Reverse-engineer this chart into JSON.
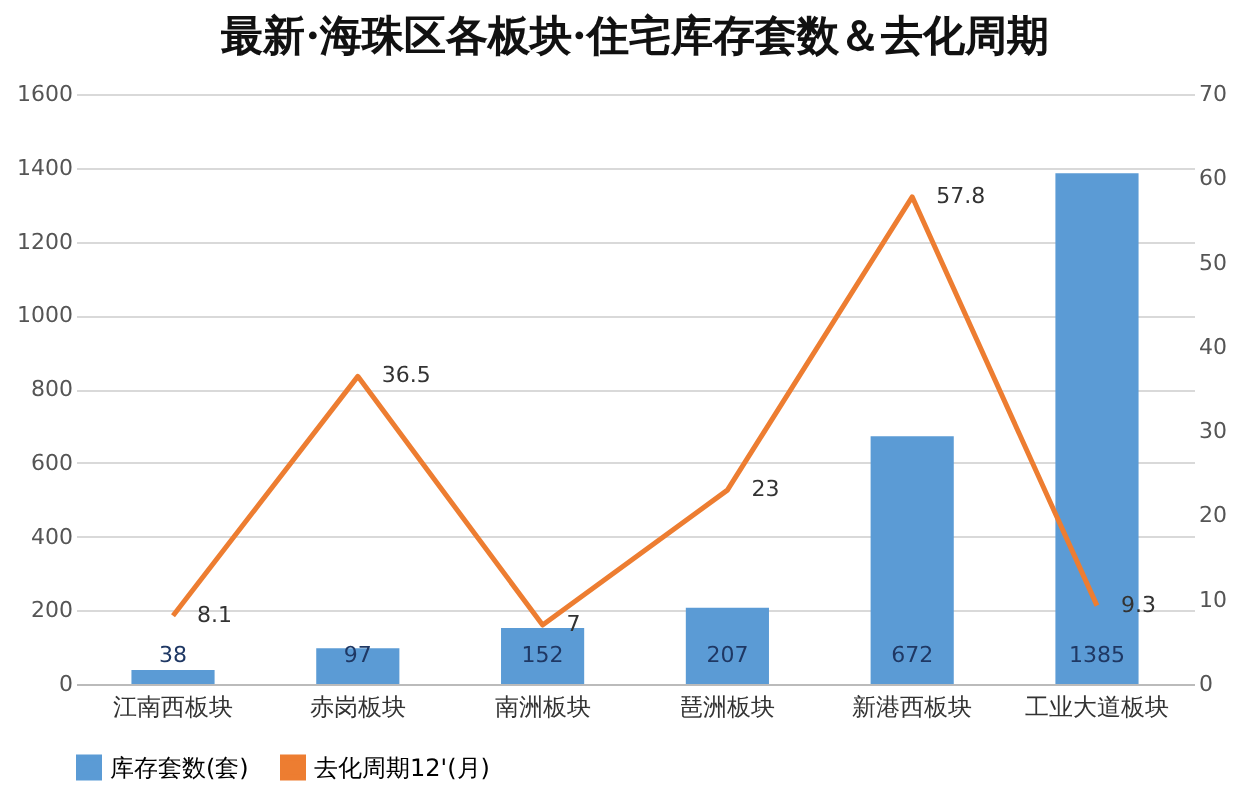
{
  "chart_data": {
    "type": "bar",
    "title": "最新·海珠区各板块·住宅库存套数＆去化周期",
    "categories": [
      "江南西板块",
      "赤岗板块",
      "南洲板块",
      "琶洲板块",
      "新港西板块",
      "工业大道板块"
    ],
    "series": [
      {
        "name": "库存套数(套)",
        "color": "#5b9bd5",
        "values": [
          38,
          97,
          152,
          207,
          672,
          1385
        ]
      },
      {
        "name": "去化周期12'(月)",
        "type": "line",
        "axis": "y2",
        "color": "#ed7d31",
        "values": [
          8.1,
          36.5,
          7,
          23,
          57.8,
          9.3
        ]
      }
    ],
    "ylim": [
      0,
      1600
    ],
    "yticks": [
      0,
      200,
      400,
      600,
      800,
      1000,
      1200,
      1400,
      1600
    ],
    "y2lim": [
      0,
      70
    ],
    "y2ticks": [
      0,
      10,
      20,
      30,
      40,
      50,
      60,
      70
    ],
    "grid": "y",
    "legend": "bottom",
    "data_labels": true
  }
}
